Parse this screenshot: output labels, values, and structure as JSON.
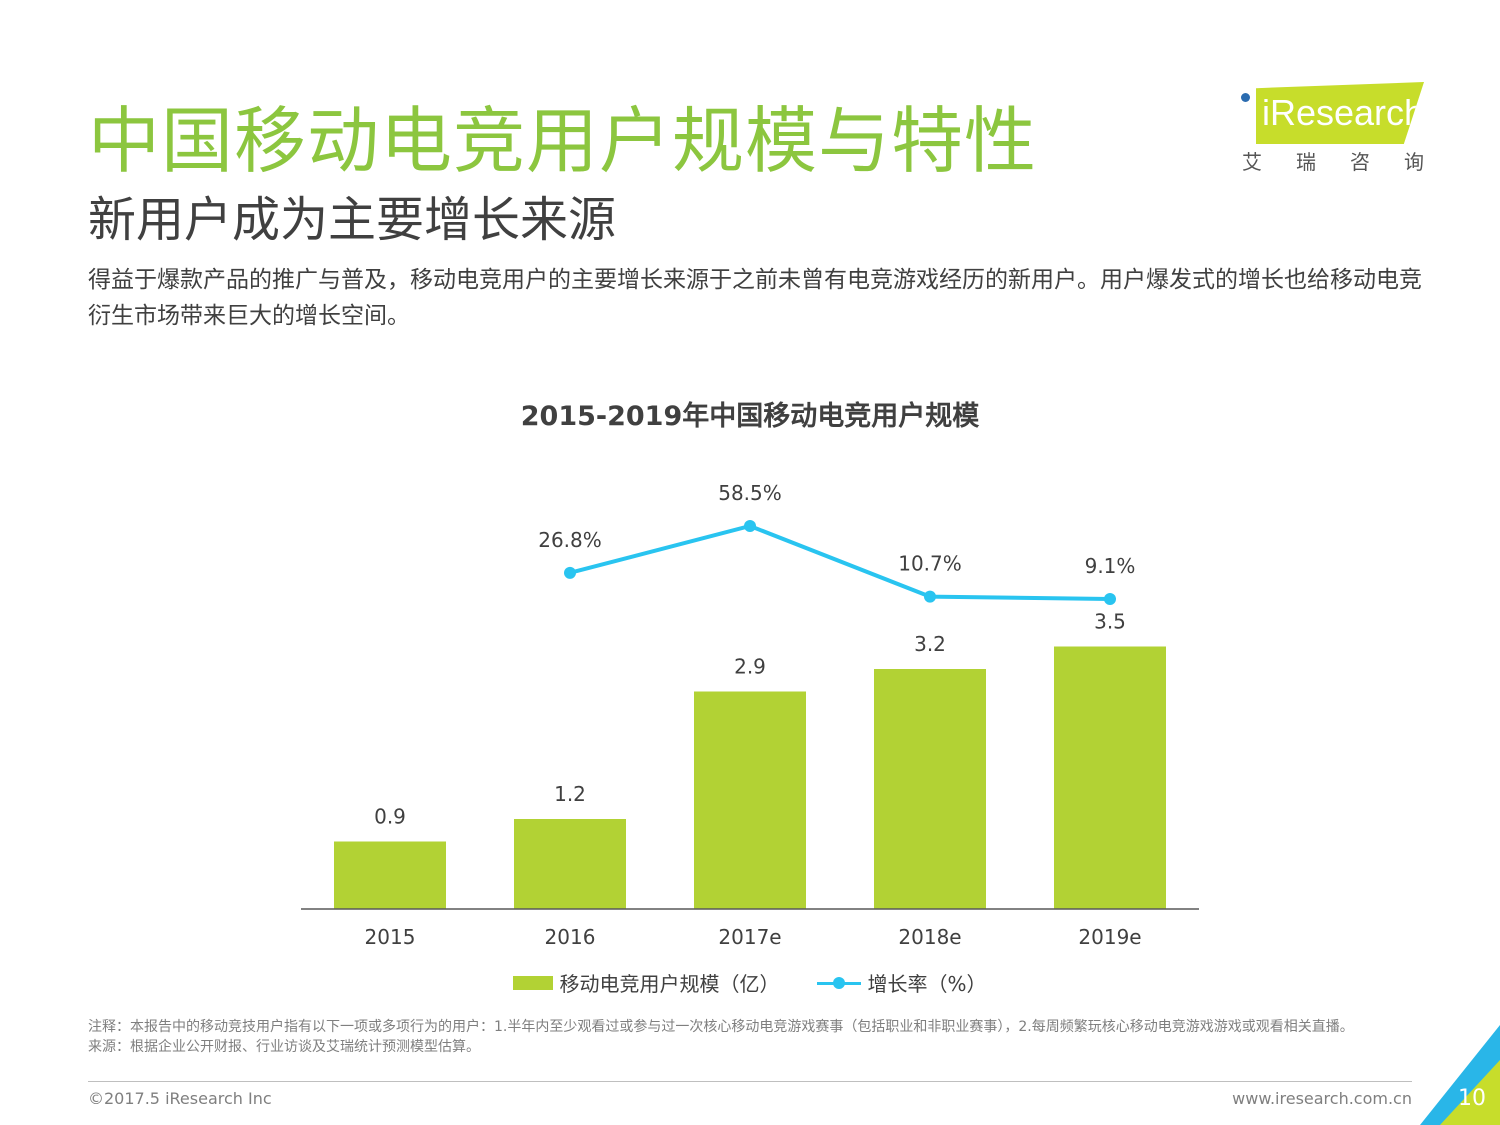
{
  "page": {
    "title": "中国移动电竞用户规模与特性",
    "subtitle": "新用户成为主要增长来源",
    "description": "得益于爆款产品的推广与普及，移动电竞用户的主要增长来源于之前未曾有电竞游戏经历的新用户。用户爆发式的增长也给移动电竞衍生市场带来巨大的增长空间。"
  },
  "logo": {
    "wordmark": "iResearch",
    "chinese": "艾瑞咨询"
  },
  "chart_data": {
    "type": "bar",
    "title": "2015-2019年中国移动电竞用户规模",
    "categories": [
      "2015",
      "2016",
      "2017e",
      "2018e",
      "2019e"
    ],
    "series": [
      {
        "name": "移动电竞用户规模（亿）",
        "kind": "bar",
        "color": "#b2d234",
        "values": [
          0.9,
          1.2,
          2.9,
          3.2,
          3.5
        ],
        "labels": [
          "0.9",
          "1.2",
          "2.9",
          "3.2",
          "3.5"
        ]
      },
      {
        "name": "增长率（%）",
        "kind": "line",
        "color": "#29c4f0",
        "values": [
          null,
          26.8,
          58.5,
          10.7,
          9.1
        ],
        "labels": [
          "",
          "26.8%",
          "58.5%",
          "10.7%",
          "9.1%"
        ]
      }
    ],
    "legend_position": "bottom",
    "grid": false
  },
  "footer": {
    "note": "注释：本报告中的移动竞技用户指有以下一项或多项行为的用户：1.半年内至少观看过或参与过一次核心移动电竞游戏赛事（包括职业和非职业赛事），2.每周频繁玩核心移动电竞游戏游戏或观看相关直播。",
    "source": "来源：根据企业公开财报、行业访谈及艾瑞统计预测模型估算。",
    "copyright": "©2017.5 iResearch Inc",
    "website": "www.iresearch.com.cn",
    "page_number": "10"
  }
}
